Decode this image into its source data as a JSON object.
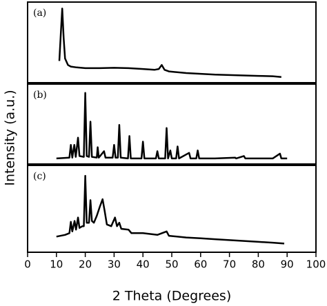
{
  "chart_data": {
    "type": "line",
    "xlabel": "2 Theta (Degrees)",
    "ylabel": "Intensity (a.u.)",
    "xlim": [
      0,
      100
    ],
    "xticks": [
      0,
      10,
      20,
      30,
      40,
      50,
      60,
      70,
      80,
      90,
      100
    ],
    "ylim": [
      0,
      100
    ],
    "color": "#000000",
    "panels": [
      {
        "label": "(a)",
        "x": [
          11,
          11.5,
          12,
          12.5,
          13,
          14,
          15,
          17,
          20,
          25,
          30,
          35,
          40,
          44,
          45.5,
          46.5,
          47.5,
          49,
          55,
          60,
          65,
          70,
          75,
          80,
          85,
          88
        ],
        "values": [
          27,
          60,
          92,
          55,
          30,
          22,
          20,
          19,
          18,
          18,
          18.5,
          18,
          17,
          16,
          17,
          22,
          16,
          14,
          12,
          11,
          10,
          9.5,
          9,
          8.5,
          8,
          7
        ]
      },
      {
        "label": "(b)",
        "x": [
          10,
          14.5,
          15,
          15.5,
          16.2,
          16.7,
          17.5,
          18,
          19.5,
          20,
          20.5,
          21.3,
          21.8,
          22.3,
          24,
          24.3,
          24.7,
          26.5,
          27,
          29.5,
          30,
          30.5,
          31.3,
          31.8,
          32.3,
          34.8,
          35.3,
          35.8,
          39.5,
          40,
          40.5,
          44.5,
          45,
          45.5,
          47.7,
          48.2,
          48.7,
          49.5,
          50,
          51.5,
          52,
          52.5,
          56,
          56.5,
          58.5,
          59,
          59.5,
          65,
          72,
          72.3,
          75,
          75.5,
          85,
          87.5,
          88,
          90
        ],
        "values": [
          7,
          8,
          24,
          8,
          24,
          9,
          33,
          10,
          9,
          89,
          10,
          9,
          53,
          9,
          8,
          21,
          8,
          16,
          8,
          8,
          24,
          8,
          8,
          49,
          8,
          7,
          35,
          7,
          7,
          28,
          7,
          7,
          16,
          7,
          7,
          45,
          7,
          17,
          7,
          7,
          22,
          7,
          14,
          7,
          7,
          17,
          7,
          7,
          8,
          7,
          10,
          7,
          7,
          13,
          7,
          7
        ]
      },
      {
        "label": "(c)",
        "x": [
          10,
          13,
          14.5,
          15,
          15.5,
          16.3,
          16.8,
          17.5,
          18,
          19,
          19.5,
          20,
          20.5,
          21.3,
          21.8,
          22.3,
          23,
          24,
          25,
          26,
          26.7,
          27.5,
          29,
          30.3,
          31,
          31.8,
          32.5,
          35,
          36,
          40,
          45,
          48.2,
          49,
          55,
          60,
          65,
          70,
          75,
          80,
          85,
          89
        ],
        "values": [
          18,
          20,
          22,
          35,
          24,
          36,
          26,
          40,
          28,
          30,
          30,
          88,
          34,
          34,
          60,
          36,
          34,
          42,
          52,
          61,
          48,
          32,
          30,
          40,
          30,
          34,
          27,
          26,
          22,
          22,
          20,
          24,
          19,
          17,
          16,
          15,
          14,
          13,
          12,
          11,
          10
        ]
      }
    ]
  }
}
